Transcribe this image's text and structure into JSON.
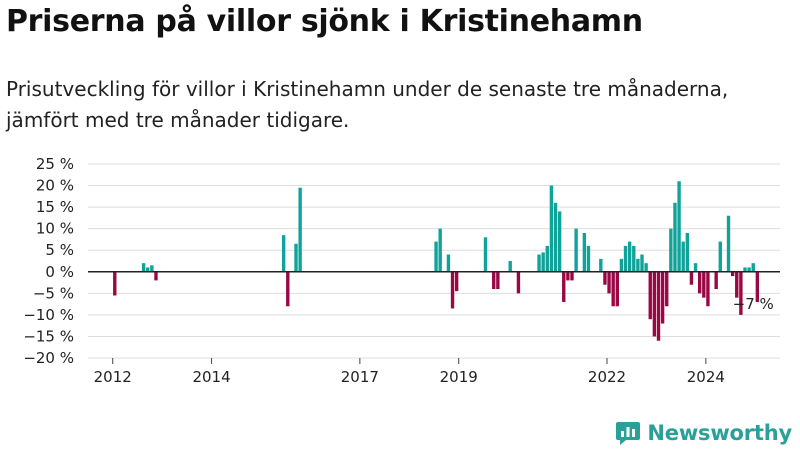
{
  "title": "Priserna på villor sjönk i Kristinehamn",
  "subtitle": "Prisutveckling för villor i Kristinehamn under de senaste tre månaderna, jämfört med tre månader tidigare.",
  "brand": {
    "name": "Newsworthy",
    "icon": "newsworthy-logo-icon"
  },
  "colors": {
    "positive": "#10a39a",
    "negative": "#990744",
    "grid": "#dddddd",
    "zero_line": "#222222"
  },
  "chart_data": {
    "type": "bar",
    "title": "",
    "xlabel": "",
    "ylabel": "",
    "ylim": [
      -20,
      25
    ],
    "yticks": [
      25,
      20,
      15,
      10,
      5,
      0,
      -5,
      -10,
      -15,
      -20
    ],
    "ytick_labels": [
      "25 %",
      "20 %",
      "15 %",
      "10 %",
      "5 %",
      "0 %",
      "−5 %",
      "−10 %",
      "−15 %",
      "−20 %"
    ],
    "xlim": [
      "2011-07",
      "2025-07"
    ],
    "xticks": [
      {
        "x": "2012-01",
        "label": "2012"
      },
      {
        "x": "2014-01",
        "label": "2014"
      },
      {
        "x": "2017-01",
        "label": "2017"
      },
      {
        "x": "2019-01",
        "label": "2019"
      },
      {
        "x": "2022-01",
        "label": "2022"
      },
      {
        "x": "2024-01",
        "label": "2024"
      }
    ],
    "grid": true,
    "annotation": {
      "x": "2024-12",
      "label": "−7 %"
    },
    "points": [
      {
        "x": "2012-01",
        "y": -5.5
      },
      {
        "x": "2012-08",
        "y": 2
      },
      {
        "x": "2012-09",
        "y": 1
      },
      {
        "x": "2012-10",
        "y": 1.5
      },
      {
        "x": "2012-11",
        "y": -2
      },
      {
        "x": "2015-06",
        "y": 8.5
      },
      {
        "x": "2015-07",
        "y": -8
      },
      {
        "x": "2015-09",
        "y": 6.5
      },
      {
        "x": "2015-10",
        "y": 19.5
      },
      {
        "x": "2018-07",
        "y": 7
      },
      {
        "x": "2018-08",
        "y": 10
      },
      {
        "x": "2018-10",
        "y": 4
      },
      {
        "x": "2018-11",
        "y": -8.5
      },
      {
        "x": "2018-12",
        "y": -4.5
      },
      {
        "x": "2019-07",
        "y": 8
      },
      {
        "x": "2019-09",
        "y": -4
      },
      {
        "x": "2019-10",
        "y": -4
      },
      {
        "x": "2020-01",
        "y": 2.5
      },
      {
        "x": "2020-03",
        "y": -5
      },
      {
        "x": "2020-08",
        "y": 4
      },
      {
        "x": "2020-09",
        "y": 4.5
      },
      {
        "x": "2020-10",
        "y": 6
      },
      {
        "x": "2020-11",
        "y": 20
      },
      {
        "x": "2020-12",
        "y": 16
      },
      {
        "x": "2021-01",
        "y": 14
      },
      {
        "x": "2021-02",
        "y": -7
      },
      {
        "x": "2021-03",
        "y": -2
      },
      {
        "x": "2021-04",
        "y": -2
      },
      {
        "x": "2021-05",
        "y": 10
      },
      {
        "x": "2021-07",
        "y": 9
      },
      {
        "x": "2021-08",
        "y": 6
      },
      {
        "x": "2021-11",
        "y": 3
      },
      {
        "x": "2021-12",
        "y": -3
      },
      {
        "x": "2022-01",
        "y": -5
      },
      {
        "x": "2022-02",
        "y": -8
      },
      {
        "x": "2022-03",
        "y": -8
      },
      {
        "x": "2022-04",
        "y": 3
      },
      {
        "x": "2022-05",
        "y": 6
      },
      {
        "x": "2022-06",
        "y": 7
      },
      {
        "x": "2022-07",
        "y": 6
      },
      {
        "x": "2022-08",
        "y": 3
      },
      {
        "x": "2022-09",
        "y": 4
      },
      {
        "x": "2022-10",
        "y": 2
      },
      {
        "x": "2022-11",
        "y": -11
      },
      {
        "x": "2022-12",
        "y": -15
      },
      {
        "x": "2023-01",
        "y": -16
      },
      {
        "x": "2023-02",
        "y": -12
      },
      {
        "x": "2023-03",
        "y": -8
      },
      {
        "x": "2023-04",
        "y": 10
      },
      {
        "x": "2023-05",
        "y": 16
      },
      {
        "x": "2023-06",
        "y": 21
      },
      {
        "x": "2023-07",
        "y": 7
      },
      {
        "x": "2023-08",
        "y": 9
      },
      {
        "x": "2023-09",
        "y": -3
      },
      {
        "x": "2023-10",
        "y": 2
      },
      {
        "x": "2023-11",
        "y": -5
      },
      {
        "x": "2023-12",
        "y": -6
      },
      {
        "x": "2024-01",
        "y": -8
      },
      {
        "x": "2024-03",
        "y": -4
      },
      {
        "x": "2024-04",
        "y": 7
      },
      {
        "x": "2024-06",
        "y": 13
      },
      {
        "x": "2024-07",
        "y": -1
      },
      {
        "x": "2024-08",
        "y": -6
      },
      {
        "x": "2024-09",
        "y": -10
      },
      {
        "x": "2024-10",
        "y": 1
      },
      {
        "x": "2024-11",
        "y": 1
      },
      {
        "x": "2024-12",
        "y": 2
      },
      {
        "x": "2025-01",
        "y": -7
      }
    ]
  }
}
